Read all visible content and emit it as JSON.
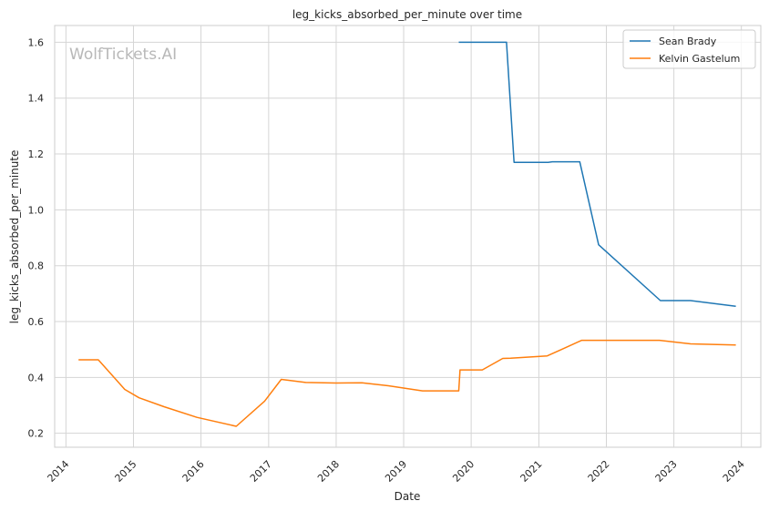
{
  "chart_data": {
    "type": "line",
    "title": "leg_kicks_absorbed_per_minute over time",
    "xlabel": "Date",
    "ylabel": "leg_kicks_absorbed_per_minute",
    "watermark": "WolfTickets.AI",
    "x_ticks": [
      "2014",
      "2015",
      "2016",
      "2017",
      "2018",
      "2019",
      "2020",
      "2021",
      "2022",
      "2023",
      "2024"
    ],
    "y_ticks": [
      "0.2",
      "0.4",
      "0.6",
      "0.8",
      "1.0",
      "1.2",
      "1.4",
      "1.6"
    ],
    "xlim": [
      "2013-11-01",
      "2024-04-15"
    ],
    "ylim": [
      0.15,
      1.66
    ],
    "grid": true,
    "legend_position": "top-right",
    "series": [
      {
        "name": "Sean Brady",
        "color": "#1f77b4",
        "points": [
          [
            "2019-10-26",
            1.6
          ],
          [
            "2020-07-10",
            1.6
          ],
          [
            "2020-08-20",
            1.17
          ],
          [
            "2021-02-20",
            1.17
          ],
          [
            "2021-03-15",
            1.172
          ],
          [
            "2021-08-10",
            1.172
          ],
          [
            "2021-11-20",
            0.875
          ],
          [
            "2022-10-20",
            0.675
          ],
          [
            "2023-04-01",
            0.675
          ],
          [
            "2023-12-02",
            0.655
          ]
        ]
      },
      {
        "name": "Kelvin Gastelum",
        "color": "#ff7f0e",
        "points": [
          [
            "2014-03-10",
            0.463
          ],
          [
            "2014-06-25",
            0.463
          ],
          [
            "2014-11-15",
            0.357
          ],
          [
            "2015-01-31",
            0.327
          ],
          [
            "2015-06-15",
            0.295
          ],
          [
            "2015-12-10",
            0.257
          ],
          [
            "2016-07-10",
            0.225
          ],
          [
            "2016-12-10",
            0.315
          ],
          [
            "2017-03-10",
            0.393
          ],
          [
            "2017-07-20",
            0.382
          ],
          [
            "2018-01-01",
            0.38
          ],
          [
            "2018-05-20",
            0.381
          ],
          [
            "2018-10-10",
            0.37
          ],
          [
            "2019-04-13",
            0.352
          ],
          [
            "2019-10-26",
            0.352
          ],
          [
            "2019-11-02",
            0.427
          ],
          [
            "2020-03-01",
            0.427
          ],
          [
            "2020-06-20",
            0.468
          ],
          [
            "2020-08-01",
            0.469
          ],
          [
            "2021-02-15",
            0.477
          ],
          [
            "2021-04-17",
            0.495
          ],
          [
            "2021-08-21",
            0.533
          ],
          [
            "2022-10-15",
            0.533
          ],
          [
            "2023-04-01",
            0.52
          ],
          [
            "2023-12-02",
            0.516
          ]
        ]
      }
    ]
  }
}
